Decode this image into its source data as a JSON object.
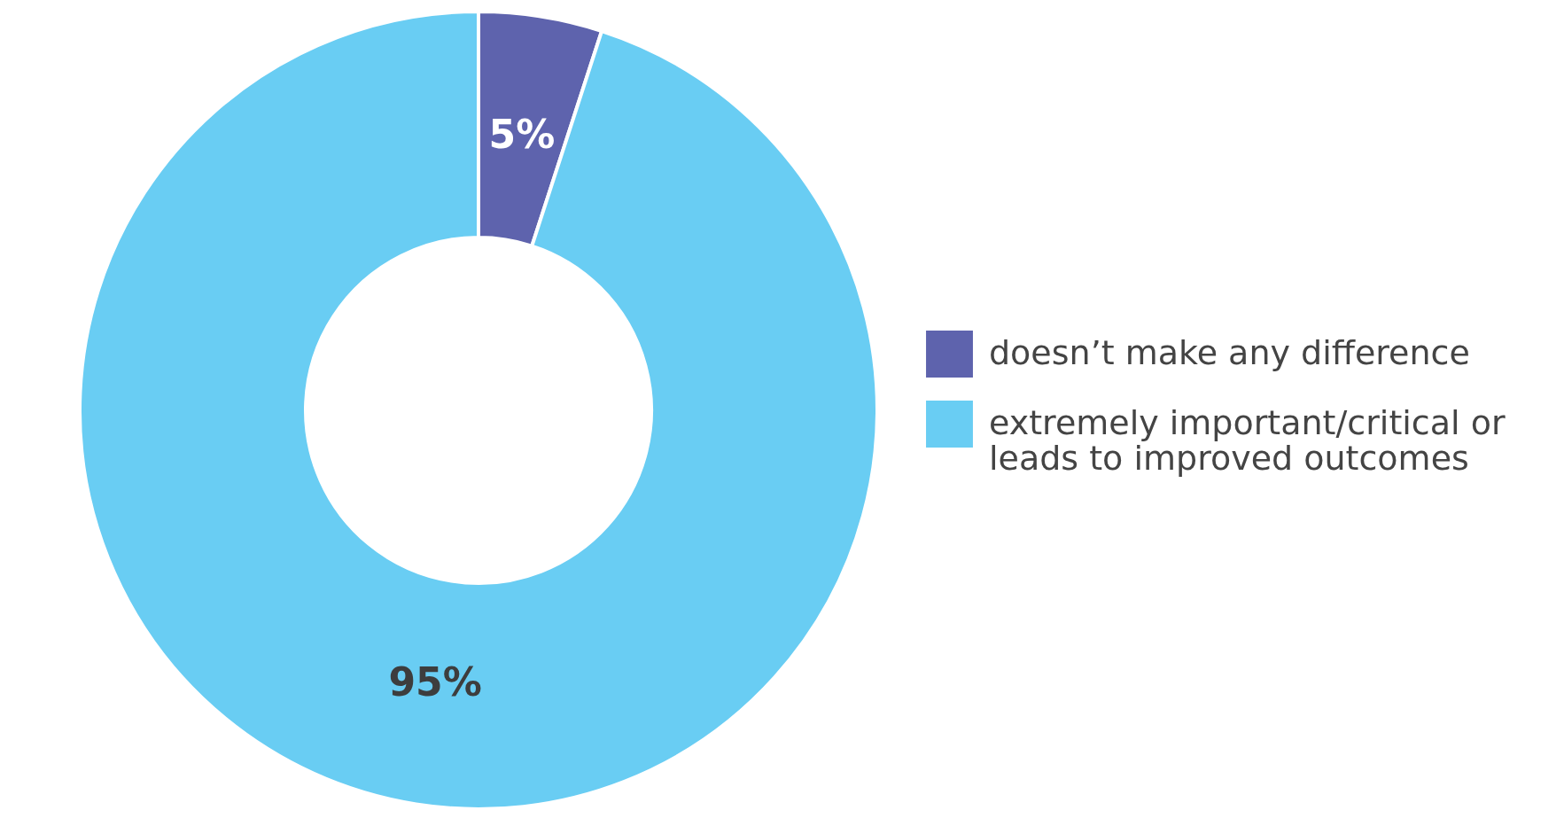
{
  "chart_data": {
    "type": "donut",
    "categories": [
      "doesn’t make any difference",
      "extremely important/critical or leads to improved outcomes"
    ],
    "values": [
      5,
      95
    ],
    "colors": [
      "#5e63ad",
      "#69cdf3"
    ],
    "value_labels": [
      "5%",
      "95%"
    ],
    "legend": "right"
  }
}
